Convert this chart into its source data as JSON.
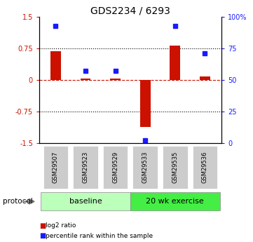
{
  "title": "GDS2234 / 6293",
  "samples": [
    "GSM29507",
    "GSM29523",
    "GSM29529",
    "GSM29533",
    "GSM29535",
    "GSM29536"
  ],
  "log2_ratio": [
    0.68,
    0.03,
    0.03,
    -1.12,
    0.82,
    0.08
  ],
  "percentile_rank": [
    93,
    57,
    57,
    2,
    93,
    71
  ],
  "bar_color": "#cc1100",
  "dot_color": "#1a1aff",
  "ylim": [
    -1.5,
    1.5
  ],
  "yticks_left": [
    -1.5,
    -0.75,
    0,
    0.75,
    1.5
  ],
  "yticks_right": [
    0,
    25,
    50,
    75,
    100
  ],
  "right_ylim": [
    0,
    100
  ],
  "baseline_label": "baseline",
  "exercise_label": "20 wk exercise",
  "protocol_label": "protocol",
  "legend_red": "log2 ratio",
  "legend_blue": "percentile rank within the sample",
  "baseline_color": "#bbffbb",
  "exercise_color": "#44ee44",
  "sample_box_color": "#cccccc",
  "title_fontsize": 10,
  "tick_fontsize": 7,
  "label_fontsize": 7.5,
  "sample_fontsize": 6,
  "proto_fontsize": 8
}
